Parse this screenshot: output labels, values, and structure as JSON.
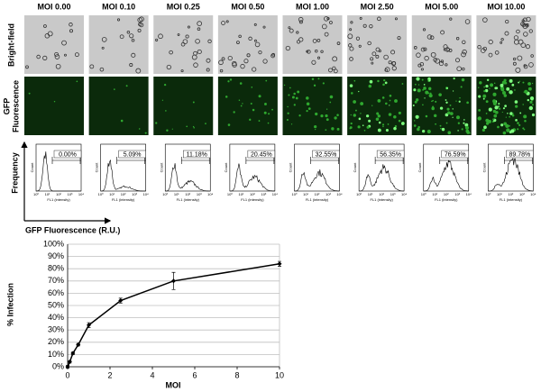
{
  "columns": [
    "MOI 0.00",
    "MOI 0.10",
    "MOI 0.25",
    "MOI 0.50",
    "MOI 1.00",
    "MOI 2.50",
    "MOI 5.00",
    "MOI 10.00"
  ],
  "rows": {
    "brightfield": "Bright-field",
    "gfp": [
      "GFP",
      "Fluorescence"
    ],
    "frequency": "Frequency"
  },
  "axis_caption": "GFP Fluorescence (R.U.)",
  "histograms": {
    "percents": [
      "0.00%",
      "5.09%",
      "11.18%",
      "20.45%",
      "32.55%",
      "56.35%",
      "76.59%",
      "89.78%"
    ],
    "ylabel": "Count",
    "xlabel": "FL1 (intensity)",
    "xticks": [
      "10⁰",
      "10¹",
      "10²",
      "10³",
      "10⁴"
    ]
  },
  "chart_data": {
    "type": "line",
    "xlabel": "MOI",
    "ylabel": "% Infection",
    "x": [
      0,
      0.1,
      0.25,
      0.5,
      1,
      2.5,
      5,
      10
    ],
    "values": [
      0,
      4,
      11,
      18,
      34,
      54,
      70,
      84
    ],
    "errors": [
      1,
      1,
      1,
      1,
      2,
      2,
      7,
      2
    ],
    "color": "#000000",
    "xlim": [
      0,
      10
    ],
    "xticks": [
      0,
      2,
      4,
      6,
      8,
      10
    ],
    "ylim": [
      0,
      100
    ],
    "yticks": [
      {
        "value": 0,
        "label": "0%"
      },
      {
        "value": 10,
        "label": "10%"
      },
      {
        "value": 20,
        "label": "20%"
      },
      {
        "value": 30,
        "label": "30%"
      },
      {
        "value": 40,
        "label": "40%"
      },
      {
        "value": 50,
        "label": "50%"
      },
      {
        "value": 60,
        "label": "60%"
      },
      {
        "value": 70,
        "label": "70%"
      },
      {
        "value": 80,
        "label": "80%"
      },
      {
        "value": 90,
        "label": "90%"
      },
      {
        "value": 100,
        "label": "100%"
      }
    ],
    "grid": true
  }
}
